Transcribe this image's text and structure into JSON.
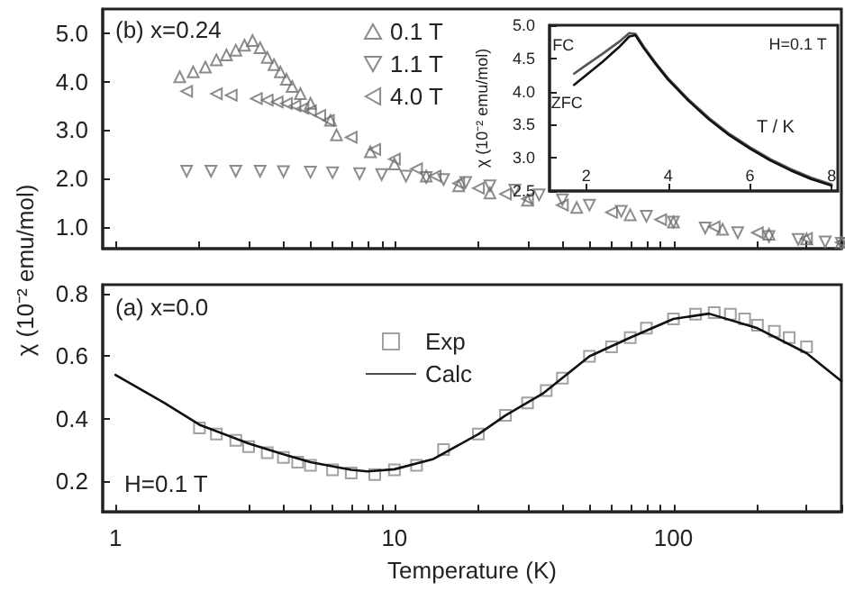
{
  "chart_data": [
    {
      "type": "scatter",
      "annotations": [
        "(b) x=0.24"
      ],
      "xlim": [
        0.9,
        400
      ],
      "ylim": [
        0.55,
        5.5
      ],
      "log": "x",
      "grid": false,
      "legend": "top",
      "tick_labels": "y",
      "xticks": [
        {
          "value": 1,
          "label": null
        },
        {
          "value": 2,
          "label": null
        },
        {
          "value": 3,
          "label": null
        },
        {
          "value": 4,
          "label": null
        },
        {
          "value": 5,
          "label": null
        },
        {
          "value": 6,
          "label": null
        },
        {
          "value": 7,
          "label": null
        },
        {
          "value": 8,
          "label": null
        },
        {
          "value": 9,
          "label": null
        },
        {
          "value": 10,
          "label": null
        },
        {
          "value": 20,
          "label": null
        },
        {
          "value": 30,
          "label": null
        },
        {
          "value": 40,
          "label": null
        },
        {
          "value": 50,
          "label": null
        },
        {
          "value": 60,
          "label": null
        },
        {
          "value": 70,
          "label": null
        },
        {
          "value": 80,
          "label": null
        },
        {
          "value": 90,
          "label": null
        },
        {
          "value": 100,
          "label": null
        },
        {
          "value": 200,
          "label": null
        },
        {
          "value": 300,
          "label": null
        },
        {
          "value": 400,
          "label": null
        }
      ],
      "yticks": [
        {
          "value": 1,
          "label": "1.0"
        },
        {
          "value": 2,
          "label": "2.0"
        },
        {
          "value": 3,
          "label": "3.0"
        },
        {
          "value": 4,
          "label": "4.0"
        },
        {
          "value": 5,
          "label": "5.0"
        }
      ],
      "series": [
        {
          "name": "0.1 T",
          "color": "#6e6e6e",
          "marker": "triangle",
          "x": [
            1.7,
            1.9,
            2.1,
            2.3,
            2.5,
            2.7,
            2.9,
            3.1,
            3.3,
            3.5,
            3.7,
            3.9,
            4.1,
            4.3,
            4.6,
            5.0,
            5.9,
            6.2,
            8.2,
            10,
            13,
            17,
            22,
            30,
            45,
            70,
            100,
            150,
            220,
            300,
            400
          ],
          "values": [
            4.1,
            4.2,
            4.3,
            4.45,
            4.55,
            4.65,
            4.75,
            4.85,
            4.7,
            4.5,
            4.35,
            4.2,
            4.05,
            3.9,
            3.75,
            3.55,
            3.2,
            2.9,
            2.55,
            2.3,
            2.05,
            1.85,
            1.7,
            1.55,
            1.4,
            1.25,
            1.1,
            0.95,
            0.85,
            0.75,
            0.68
          ]
        },
        {
          "name": "1.1 T",
          "color": "#6e6e6e",
          "marker": "triangle-down",
          "x": [
            1.8,
            2.2,
            2.7,
            3.3,
            4,
            5,
            6,
            7.5,
            9,
            11,
            13,
            15,
            18,
            22,
            27,
            33,
            40,
            50,
            65,
            80,
            100,
            130,
            170,
            220,
            280,
            350,
            400
          ],
          "values": [
            2.15,
            2.15,
            2.15,
            2.15,
            2.14,
            2.13,
            2.12,
            2.1,
            2.08,
            2.05,
            2.02,
            1.98,
            1.92,
            1.85,
            1.76,
            1.66,
            1.56,
            1.45,
            1.32,
            1.22,
            1.1,
            0.98,
            0.88,
            0.8,
            0.74,
            0.69,
            0.66
          ]
        },
        {
          "name": "4.0 T",
          "color": "#6e6e6e",
          "marker": "triangle-left",
          "x": [
            1.8,
            2.3,
            2.6,
            3.2,
            3.5,
            3.8,
            4.1,
            4.4,
            4.7,
            5.0,
            5.4,
            5.8,
            7,
            8.5,
            10,
            12,
            14,
            17,
            20,
            25,
            30,
            40,
            60,
            90,
            140,
            200,
            300,
            400
          ],
          "values": [
            3.8,
            3.75,
            3.72,
            3.65,
            3.62,
            3.58,
            3.55,
            3.5,
            3.45,
            3.4,
            3.3,
            3.2,
            2.85,
            2.6,
            2.4,
            2.2,
            2.05,
            1.9,
            1.8,
            1.68,
            1.58,
            1.45,
            1.3,
            1.15,
            1.0,
            0.88,
            0.76,
            0.68
          ]
        }
      ]
    },
    {
      "type": "line",
      "xlabel": "T / K",
      "ylabel": "χ (10⁻² emu/mol)",
      "annotations": [
        "H=0.1 T"
      ],
      "xlim": [
        1.1,
        8.15
      ],
      "ylim": [
        2.5,
        5.0
      ],
      "grid": false,
      "legend": false,
      "xticks": [
        2,
        4,
        6,
        8
      ],
      "yticks": [
        {
          "value": 2.5,
          "label": "2.5"
        },
        {
          "value": 3,
          "label": "3.0"
        },
        {
          "value": 3.5,
          "label": "3.5"
        },
        {
          "value": 4,
          "label": "4.0"
        },
        {
          "value": 4.5,
          "label": "4.5"
        },
        {
          "value": 5,
          "label": "5.0"
        }
      ],
      "series": [
        {
          "name": "FC",
          "color": "#555555",
          "x": [
            1.7,
            2.0,
            2.4,
            2.8,
            3.05,
            3.2,
            3.4,
            3.7,
            4.0,
            4.5,
            5.0,
            5.5,
            6.0,
            6.5,
            7.0,
            7.5,
            8.0
          ],
          "values": [
            4.27,
            4.4,
            4.57,
            4.75,
            4.88,
            4.87,
            4.68,
            4.43,
            4.2,
            3.88,
            3.6,
            3.36,
            3.16,
            2.98,
            2.83,
            2.7,
            2.6
          ]
        },
        {
          "name": "ZFC",
          "color": "#111111",
          "x": [
            1.7,
            2.0,
            2.4,
            2.8,
            3.05,
            3.2,
            3.4,
            3.7,
            4.0,
            4.5,
            5.0,
            5.5,
            6.0,
            6.5,
            7.0,
            7.5,
            8.0
          ],
          "values": [
            4.1,
            4.25,
            4.45,
            4.67,
            4.83,
            4.85,
            4.66,
            4.41,
            4.18,
            3.86,
            3.58,
            3.34,
            3.14,
            2.96,
            2.81,
            2.68,
            2.58
          ]
        }
      ]
    },
    {
      "type": "line",
      "xlabel": "Temperature (K)",
      "ylabel": "χ (10⁻² emu/mol)",
      "annotations": [
        "(a) x=0.0",
        "H=0.1 T"
      ],
      "xlim": [
        0.9,
        400
      ],
      "ylim": [
        0.1,
        0.83
      ],
      "log": "x",
      "grid": false,
      "legend": "top",
      "xticks": [
        1,
        {
          "value": 2,
          "label": null
        },
        {
          "value": 3,
          "label": null
        },
        {
          "value": 4,
          "label": null
        },
        {
          "value": 5,
          "label": null
        },
        {
          "value": 6,
          "label": null
        },
        {
          "value": 7,
          "label": null
        },
        {
          "value": 8,
          "label": null
        },
        {
          "value": 9,
          "label": null
        },
        10,
        {
          "value": 20,
          "label": null
        },
        {
          "value": 30,
          "label": null
        },
        {
          "value": 40,
          "label": null
        },
        {
          "value": 50,
          "label": null
        },
        {
          "value": 60,
          "label": null
        },
        {
          "value": 70,
          "label": null
        },
        {
          "value": 80,
          "label": null
        },
        {
          "value": 90,
          "label": null
        },
        100,
        {
          "value": 200,
          "label": null
        },
        {
          "value": 300,
          "label": null
        },
        {
          "value": 400,
          "label": null
        }
      ],
      "yticks": [
        0.2,
        0.4,
        0.6,
        0.8
      ],
      "series": [
        {
          "name": "Exp",
          "type": "scatter",
          "marker": "square",
          "color": "#8a8a8a",
          "x": [
            2,
            2.3,
            2.7,
            3,
            3.5,
            4,
            4.5,
            5,
            6,
            7,
            8.5,
            10,
            12,
            15,
            20,
            25,
            30,
            35,
            40,
            50,
            60,
            70,
            80,
            100,
            120,
            140,
            160,
            180,
            200,
            230,
            260,
            300
          ],
          "values": [
            0.37,
            0.35,
            0.33,
            0.31,
            0.29,
            0.275,
            0.26,
            0.25,
            0.235,
            0.225,
            0.22,
            0.235,
            0.25,
            0.3,
            0.35,
            0.41,
            0.45,
            0.49,
            0.53,
            0.6,
            0.63,
            0.66,
            0.69,
            0.72,
            0.735,
            0.74,
            0.735,
            0.72,
            0.7,
            0.68,
            0.66,
            0.63
          ]
        },
        {
          "name": "Calc",
          "type": "line",
          "marker": "none",
          "color": "#111111",
          "x": [
            1,
            1.5,
            2,
            3,
            4,
            5,
            7,
            8,
            10,
            13.8,
            20,
            25,
            34,
            50,
            70,
            100,
            134,
            200,
            300,
            400
          ],
          "values": [
            0.54,
            0.45,
            0.38,
            0.32,
            0.285,
            0.26,
            0.235,
            0.23,
            0.237,
            0.27,
            0.35,
            0.41,
            0.48,
            0.6,
            0.66,
            0.72,
            0.737,
            0.69,
            0.61,
            0.52
          ]
        }
      ]
    }
  ]
}
